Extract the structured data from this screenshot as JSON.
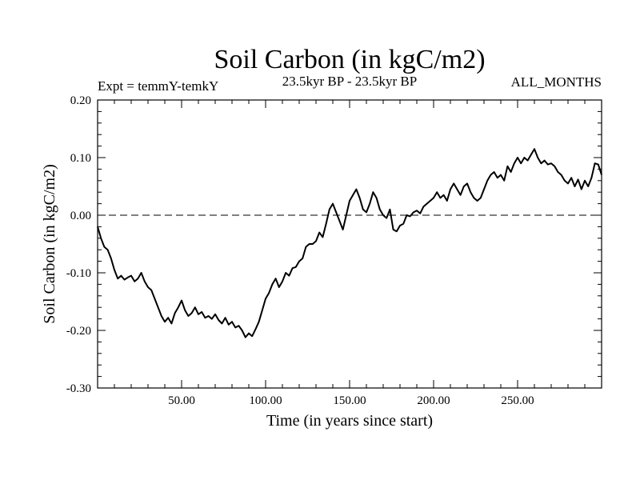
{
  "chart_data": {
    "type": "line",
    "title": "Soil Carbon (in kgC/m2)",
    "subtitle_left": "Expt = temmY-temkY",
    "subtitle_center": "23.5kyr BP - 23.5kyr BP",
    "subtitle_right": "ALL_MONTHS",
    "xlabel": "Time (in years since start)",
    "ylabel": "Soil Carbon (in kgC/m2)",
    "xlim": [
      0,
      300
    ],
    "ylim": [
      -0.3,
      0.2
    ],
    "x_ticks": [
      50,
      100,
      150,
      200,
      250
    ],
    "x_tick_labels": [
      "50.00",
      "100.00",
      "150.00",
      "200.00",
      "250.00"
    ],
    "y_ticks": [
      -0.3,
      -0.2,
      -0.1,
      0.0,
      0.1,
      0.2
    ],
    "y_tick_labels": [
      "-0.30",
      "-0.20",
      "-0.10",
      "0.00",
      "0.10",
      "0.20"
    ],
    "reference_line": 0.0,
    "series": [
      {
        "name": "temmY-temkY",
        "color": "#000000",
        "x": [
          0,
          2,
          4,
          6,
          8,
          10,
          12,
          14,
          16,
          18,
          20,
          22,
          24,
          26,
          28,
          30,
          32,
          34,
          36,
          38,
          40,
          42,
          44,
          46,
          48,
          50,
          52,
          54,
          56,
          58,
          60,
          62,
          64,
          66,
          68,
          70,
          72,
          74,
          76,
          78,
          80,
          82,
          84,
          86,
          88,
          90,
          92,
          94,
          96,
          98,
          100,
          102,
          104,
          106,
          108,
          110,
          112,
          114,
          116,
          118,
          120,
          122,
          124,
          126,
          128,
          130,
          132,
          134,
          136,
          138,
          140,
          142,
          144,
          146,
          148,
          150,
          152,
          154,
          156,
          158,
          160,
          162,
          164,
          166,
          168,
          170,
          172,
          174,
          176,
          178,
          180,
          182,
          184,
          186,
          188,
          190,
          192,
          194,
          196,
          198,
          200,
          202,
          204,
          206,
          208,
          210,
          212,
          214,
          216,
          218,
          220,
          222,
          224,
          226,
          228,
          230,
          232,
          234,
          236,
          238,
          240,
          242,
          244,
          246,
          248,
          250,
          252,
          254,
          256,
          258,
          260,
          262,
          264,
          266,
          268,
          270,
          272,
          274,
          276,
          278,
          280,
          282,
          284,
          286,
          288,
          290,
          292,
          294,
          296,
          298,
          300
        ],
        "values": [
          -0.02,
          -0.04,
          -0.055,
          -0.06,
          -0.075,
          -0.095,
          -0.11,
          -0.105,
          -0.112,
          -0.108,
          -0.105,
          -0.115,
          -0.11,
          -0.1,
          -0.115,
          -0.125,
          -0.13,
          -0.145,
          -0.16,
          -0.175,
          -0.185,
          -0.178,
          -0.188,
          -0.17,
          -0.16,
          -0.148,
          -0.165,
          -0.175,
          -0.17,
          -0.16,
          -0.172,
          -0.168,
          -0.178,
          -0.175,
          -0.18,
          -0.172,
          -0.182,
          -0.188,
          -0.178,
          -0.19,
          -0.185,
          -0.195,
          -0.192,
          -0.2,
          -0.212,
          -0.205,
          -0.21,
          -0.198,
          -0.185,
          -0.165,
          -0.145,
          -0.135,
          -0.12,
          -0.11,
          -0.125,
          -0.115,
          -0.1,
          -0.105,
          -0.092,
          -0.09,
          -0.08,
          -0.075,
          -0.055,
          -0.05,
          -0.05,
          -0.045,
          -0.03,
          -0.038,
          -0.015,
          0.01,
          0.02,
          0.005,
          -0.01,
          -0.025,
          0.0,
          0.025,
          0.035,
          0.045,
          0.03,
          0.01,
          0.005,
          0.02,
          0.04,
          0.03,
          0.01,
          0.0,
          -0.005,
          0.01,
          -0.025,
          -0.028,
          -0.018,
          -0.015,
          0.0,
          -0.002,
          0.005,
          0.008,
          0.003,
          0.015,
          0.02,
          0.025,
          0.03,
          0.04,
          0.03,
          0.035,
          0.025,
          0.045,
          0.055,
          0.045,
          0.035,
          0.05,
          0.055,
          0.04,
          0.03,
          0.025,
          0.03,
          0.045,
          0.06,
          0.07,
          0.075,
          0.065,
          0.07,
          0.06,
          0.085,
          0.075,
          0.09,
          0.1,
          0.09,
          0.1,
          0.095,
          0.105,
          0.115,
          0.1,
          0.09,
          0.095,
          0.088,
          0.09,
          0.085,
          0.075,
          0.07,
          0.06,
          0.055,
          0.065,
          0.05,
          0.062,
          0.045,
          0.06,
          0.05,
          0.065,
          0.09,
          0.088,
          0.07
        ]
      }
    ]
  }
}
